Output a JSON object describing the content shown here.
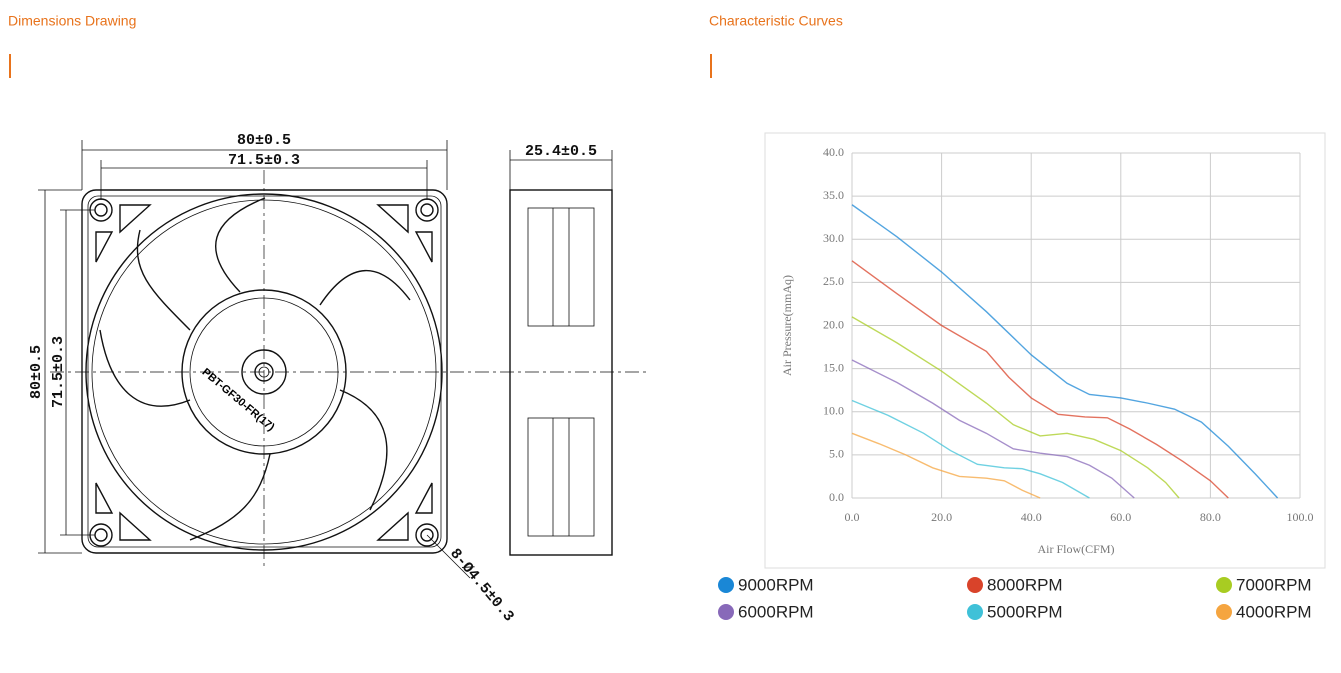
{
  "page": {
    "left_heading": "Dimensions Drawing",
    "right_heading": "Characteristic Curves",
    "drawing": {
      "width_outer": "80±0.5",
      "width_inner": "71.5±0.3",
      "depth": "25.4±0.5",
      "height_outer": "80±0.5",
      "height_inner": "71.5±0.3",
      "holes": "8-Ø4.5±0.3",
      "material": "PBT-GF30-FR(17)"
    }
  },
  "chart_data": {
    "type": "line",
    "x_label": "Air Flow(CFM)",
    "y_label": "Air Pressure(mmAq)",
    "xlim": [
      0,
      100
    ],
    "ylim": [
      0,
      40
    ],
    "grid": true,
    "xticks": [
      {
        "value": 0,
        "label": "0.0"
      },
      {
        "value": 20,
        "label": "20.0"
      },
      {
        "value": 40,
        "label": "40.0"
      },
      {
        "value": 60,
        "label": "60.0"
      },
      {
        "value": 80,
        "label": "80.0"
      },
      {
        "value": 100,
        "label": "100.0"
      }
    ],
    "yticks": [
      {
        "value": 0,
        "label": "0.0"
      },
      {
        "value": 5,
        "label": "5.0"
      },
      {
        "value": 10,
        "label": "10.0"
      },
      {
        "value": 15,
        "label": "15.0"
      },
      {
        "value": 20,
        "label": "20.0"
      },
      {
        "value": 25,
        "label": "25.0"
      },
      {
        "value": 30,
        "label": "30.0"
      },
      {
        "value": 35,
        "label": "35.0"
      },
      {
        "value": 40,
        "label": "40.0"
      }
    ],
    "series": [
      {
        "name": "9000RPM",
        "color": "#1a87d6",
        "x": [
          0,
          10,
          20,
          30,
          40,
          48,
          53,
          60,
          66,
          72,
          78,
          84,
          90,
          95
        ],
        "values": [
          34,
          30.3,
          26.2,
          21.6,
          16.6,
          13.3,
          12,
          11.6,
          11,
          10.3,
          8.8,
          6,
          2.8,
          0
        ]
      },
      {
        "name": "8000RPM",
        "color": "#d9432a",
        "x": [
          0,
          10,
          20,
          30,
          35,
          40,
          46,
          52,
          57,
          62,
          68,
          74,
          80,
          84
        ],
        "values": [
          27.5,
          23.7,
          20,
          17,
          14,
          11.6,
          9.7,
          9.4,
          9.3,
          8,
          6.2,
          4.2,
          2,
          0
        ]
      },
      {
        "name": "7000RPM",
        "color": "#a8cc22",
        "x": [
          0,
          10,
          20,
          30,
          36,
          42,
          48,
          54,
          60,
          66,
          70,
          73
        ],
        "values": [
          21,
          18,
          14.7,
          11,
          8.5,
          7.2,
          7.5,
          6.8,
          5.5,
          3.5,
          1.8,
          0
        ]
      },
      {
        "name": "6000RPM",
        "color": "#8869b9",
        "x": [
          0,
          10,
          18,
          24,
          30,
          36,
          42,
          48,
          53,
          58,
          63
        ],
        "values": [
          16,
          13.4,
          11,
          9,
          7.5,
          5.7,
          5.2,
          4.8,
          3.8,
          2.3,
          0
        ]
      },
      {
        "name": "5000RPM",
        "color": "#3fc1d8",
        "x": [
          0,
          8,
          16,
          22,
          28,
          34,
          38,
          42,
          47,
          53
        ],
        "values": [
          11.3,
          9.6,
          7.5,
          5.5,
          3.9,
          3.5,
          3.4,
          2.8,
          1.8,
          0
        ]
      },
      {
        "name": "4000RPM",
        "color": "#f5a540",
        "x": [
          0,
          6,
          12,
          18,
          24,
          30,
          34,
          38,
          42
        ],
        "values": [
          7.5,
          6.3,
          5,
          3.5,
          2.5,
          2.3,
          2,
          0.9,
          0
        ]
      }
    ]
  }
}
